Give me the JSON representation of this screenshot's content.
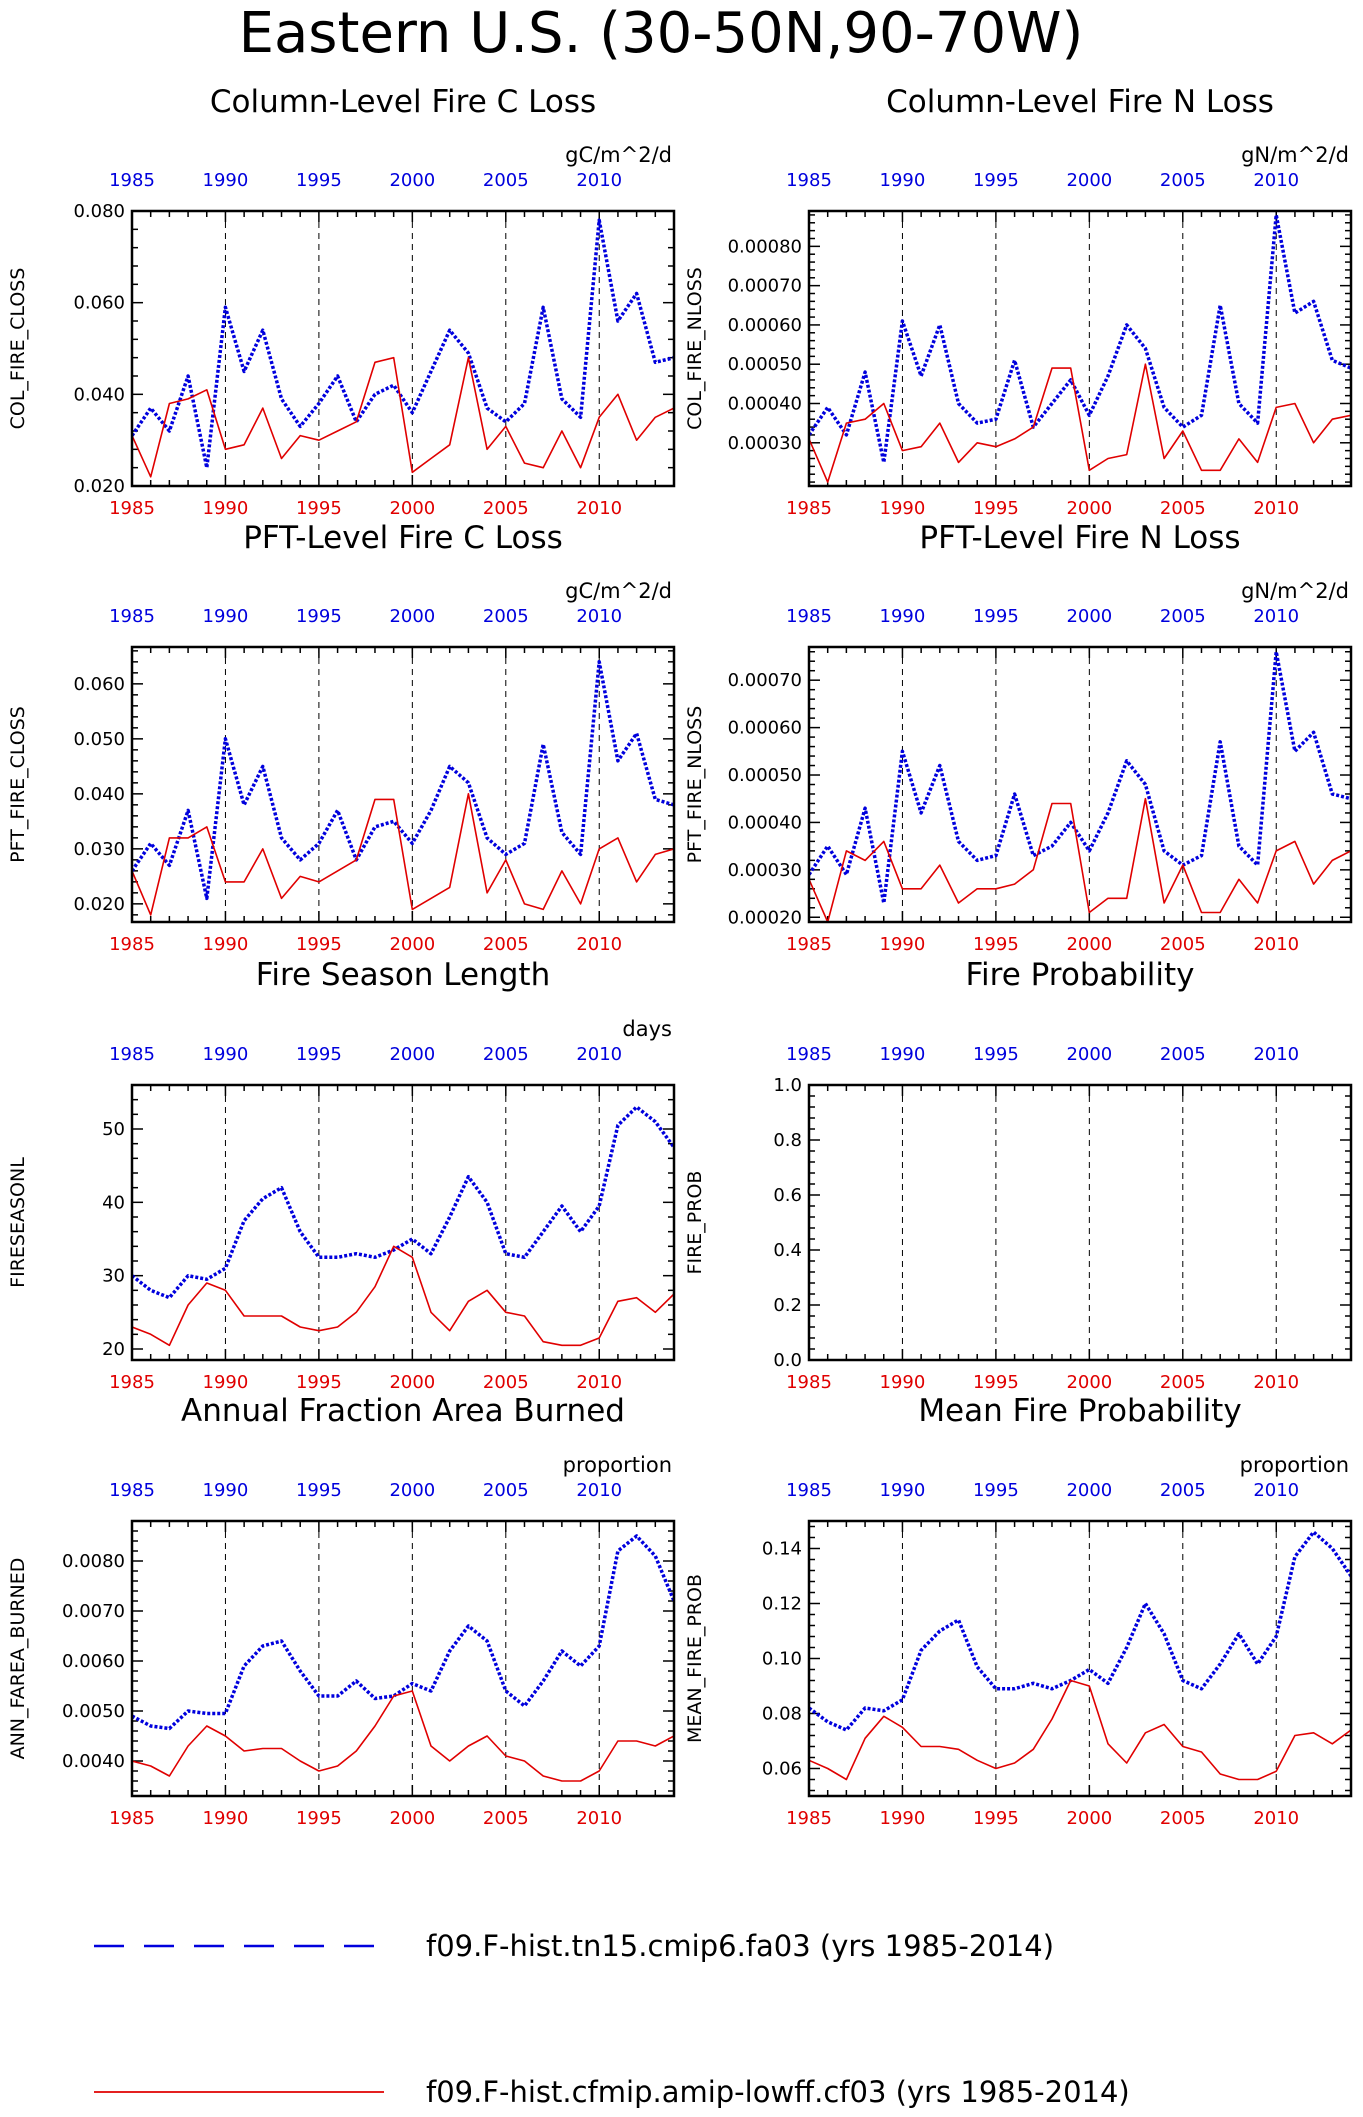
{
  "figure": {
    "title": "Eastern U.S. (30-50N,90-70W)"
  },
  "colors": {
    "series_1": "#0000dd",
    "series_2": "#e00000",
    "top_axis_labels": "#0000dd",
    "bottom_axis_labels": "#e00000"
  },
  "legend": {
    "items": [
      {
        "label": "f09.F-hist.tn15.cmip6.fa03 (yrs 1985-2014)",
        "color": "#0000dd",
        "style": "dashed"
      },
      {
        "label": "f09.F-hist.cfmip.amip-lowff.cf03 (yrs 1985-2014)",
        "color": "#e00000",
        "style": "solid"
      }
    ]
  },
  "chart_data": [
    {
      "type": "line",
      "title": "Column-Level Fire C Loss",
      "units": "gC/m^2/d",
      "ylabel": "COL_FIRE_CLOSS",
      "xlim": [
        1985,
        2014
      ],
      "ylim": [
        0.02,
        0.08
      ],
      "yticks": [
        "0.020",
        "0.040",
        "0.060",
        "0.080"
      ],
      "ytick_values": [
        0.02,
        0.04,
        0.06,
        0.08
      ],
      "xticks": [
        1985,
        1990,
        1995,
        2000,
        2005,
        2010
      ],
      "xtick_labels": [
        "1985",
        "1990",
        "1995",
        "2000",
        "2005",
        "2010"
      ],
      "grid": "dashed vertical lines at 1990, 1995, 2000, 2005, 2010",
      "x": [
        1985,
        1986,
        1987,
        1988,
        1989,
        1990,
        1991,
        1992,
        1993,
        1994,
        1995,
        1996,
        1997,
        1998,
        1999,
        2000,
        2001,
        2002,
        2003,
        2004,
        2005,
        2006,
        2007,
        2008,
        2009,
        2010,
        2011,
        2012,
        2013,
        2014
      ],
      "series": [
        {
          "values": [
            0.031,
            0.037,
            0.032,
            0.044,
            0.024,
            0.059,
            0.045,
            0.054,
            0.039,
            0.033,
            0.038,
            0.044,
            0.034,
            0.04,
            0.042,
            0.036,
            0.045,
            0.054,
            0.049,
            0.037,
            0.034,
            0.038,
            0.059,
            0.039,
            0.035,
            0.078,
            0.056,
            0.062,
            0.047,
            0.048
          ]
        },
        {
          "values": [
            0.031,
            0.022,
            0.038,
            0.039,
            0.041,
            0.028,
            0.029,
            0.037,
            0.026,
            0.031,
            0.03,
            0.032,
            0.034,
            0.047,
            0.048,
            0.023,
            0.026,
            0.029,
            0.048,
            0.028,
            0.033,
            0.025,
            0.024,
            0.032,
            0.024,
            0.035,
            0.04,
            0.03,
            0.035,
            0.037
          ]
        }
      ]
    },
    {
      "type": "line",
      "title": "Column-Level Fire N Loss",
      "units": "gN/m^2/d",
      "ylabel": "COL_FIRE_NLOSS",
      "xlim": [
        1985,
        2014
      ],
      "ylim": [
        0.00019,
        0.00089
      ],
      "yticks": [
        "0.00030",
        "0.00040",
        "0.00050",
        "0.00060",
        "0.00070",
        "0.00080"
      ],
      "ytick_values": [
        0.0003,
        0.0004,
        0.0005,
        0.0006,
        0.0007,
        0.0008
      ],
      "xticks": [
        1985,
        1990,
        1995,
        2000,
        2005,
        2010
      ],
      "xtick_labels": [
        "1985",
        "1990",
        "1995",
        "2000",
        "2005",
        "2010"
      ],
      "grid": "dashed vertical lines at 1990, 1995, 2000, 2005, 2010",
      "x": [
        1985,
        1986,
        1987,
        1988,
        1989,
        1990,
        1991,
        1992,
        1993,
        1994,
        1995,
        1996,
        1997,
        1998,
        1999,
        2000,
        2001,
        2002,
        2003,
        2004,
        2005,
        2006,
        2007,
        2008,
        2009,
        2010,
        2011,
        2012,
        2013,
        2014
      ],
      "series": [
        {
          "values": [
            0.00032,
            0.00039,
            0.00032,
            0.00048,
            0.00025,
            0.00061,
            0.00047,
            0.0006,
            0.0004,
            0.00035,
            0.00036,
            0.00051,
            0.00034,
            0.0004,
            0.00046,
            0.00037,
            0.00047,
            0.0006,
            0.00054,
            0.00039,
            0.00034,
            0.00037,
            0.00065,
            0.0004,
            0.00035,
            0.00088,
            0.00063,
            0.00066,
            0.00051,
            0.00049
          ]
        },
        {
          "values": [
            0.00031,
            0.0002,
            0.00035,
            0.00036,
            0.0004,
            0.00028,
            0.00029,
            0.00035,
            0.00025,
            0.0003,
            0.00029,
            0.00031,
            0.00034,
            0.00049,
            0.00049,
            0.00023,
            0.00026,
            0.00027,
            0.0005,
            0.00026,
            0.00033,
            0.00023,
            0.00023,
            0.00031,
            0.00025,
            0.00039,
            0.0004,
            0.0003,
            0.00036,
            0.00037
          ]
        }
      ]
    },
    {
      "type": "line",
      "title": "PFT-Level Fire C Loss",
      "units": "gC/m^2/d",
      "ylabel": "PFT_FIRE_CLOSS",
      "xlim": [
        1985,
        2014
      ],
      "ylim": [
        0.0167,
        0.0667
      ],
      "yticks": [
        "0.020",
        "0.030",
        "0.040",
        "0.050",
        "0.060"
      ],
      "ytick_values": [
        0.02,
        0.03,
        0.04,
        0.05,
        0.06
      ],
      "xticks": [
        1985,
        1990,
        1995,
        2000,
        2005,
        2010
      ],
      "xtick_labels": [
        "1985",
        "1990",
        "1995",
        "2000",
        "2005",
        "2010"
      ],
      "grid": "dashed vertical lines at 1990, 1995, 2000, 2005, 2010",
      "x": [
        1985,
        1986,
        1987,
        1988,
        1989,
        1990,
        1991,
        1992,
        1993,
        1994,
        1995,
        1996,
        1997,
        1998,
        1999,
        2000,
        2001,
        2002,
        2003,
        2004,
        2005,
        2006,
        2007,
        2008,
        2009,
        2010,
        2011,
        2012,
        2013,
        2014
      ],
      "series": [
        {
          "values": [
            0.026,
            0.031,
            0.027,
            0.037,
            0.021,
            0.05,
            0.038,
            0.045,
            0.032,
            0.028,
            0.031,
            0.037,
            0.028,
            0.034,
            0.035,
            0.031,
            0.037,
            0.045,
            0.042,
            0.032,
            0.029,
            0.031,
            0.049,
            0.033,
            0.029,
            0.064,
            0.046,
            0.051,
            0.039,
            0.038
          ]
        },
        {
          "values": [
            0.026,
            0.018,
            0.032,
            0.032,
            0.034,
            0.024,
            0.024,
            0.03,
            0.021,
            0.025,
            0.024,
            0.026,
            0.028,
            0.039,
            0.039,
            0.019,
            0.021,
            0.023,
            0.04,
            0.022,
            0.028,
            0.02,
            0.019,
            0.026,
            0.02,
            0.03,
            0.032,
            0.024,
            0.029,
            0.03
          ]
        }
      ]
    },
    {
      "type": "line",
      "title": "PFT-Level Fire N Loss",
      "units": "gN/m^2/d",
      "ylabel": "PFT_FIRE_NLOSS",
      "xlim": [
        1985,
        2014
      ],
      "ylim": [
        0.00019,
        0.00077
      ],
      "yticks": [
        "0.00020",
        "0.00030",
        "0.00040",
        "0.00050",
        "0.00060",
        "0.00070"
      ],
      "ytick_values": [
        0.0002,
        0.0003,
        0.0004,
        0.0005,
        0.0006,
        0.0007
      ],
      "xticks": [
        1985,
        1990,
        1995,
        2000,
        2005,
        2010
      ],
      "xtick_labels": [
        "1985",
        "1990",
        "1995",
        "2000",
        "2005",
        "2010"
      ],
      "grid": "dashed vertical lines at 1990, 1995, 2000, 2005, 2010",
      "x": [
        1985,
        1986,
        1987,
        1988,
        1989,
        1990,
        1991,
        1992,
        1993,
        1994,
        1995,
        1996,
        1997,
        1998,
        1999,
        2000,
        2001,
        2002,
        2003,
        2004,
        2005,
        2006,
        2007,
        2008,
        2009,
        2010,
        2011,
        2012,
        2013,
        2014
      ],
      "series": [
        {
          "values": [
            0.00029,
            0.00035,
            0.00029,
            0.00043,
            0.00023,
            0.00055,
            0.00042,
            0.00052,
            0.00036,
            0.00032,
            0.00033,
            0.00046,
            0.00033,
            0.00035,
            0.0004,
            0.00034,
            0.00042,
            0.00053,
            0.00048,
            0.00034,
            0.00031,
            0.00033,
            0.00057,
            0.00035,
            0.00031,
            0.00076,
            0.00055,
            0.00059,
            0.00046,
            0.00045
          ]
        },
        {
          "values": [
            0.00028,
            0.00019,
            0.00034,
            0.00032,
            0.00036,
            0.00026,
            0.00026,
            0.00031,
            0.00023,
            0.00026,
            0.00026,
            0.00027,
            0.0003,
            0.00044,
            0.00044,
            0.00021,
            0.00024,
            0.00024,
            0.00045,
            0.00023,
            0.00031,
            0.00021,
            0.00021,
            0.00028,
            0.00023,
            0.00034,
            0.00036,
            0.00027,
            0.00032,
            0.00034
          ]
        }
      ]
    },
    {
      "type": "line",
      "title": "Fire Season Length",
      "units": "days",
      "ylabel": "FIRESEASONL",
      "xlim": [
        1985,
        2014
      ],
      "ylim": [
        18.5,
        56
      ],
      "yticks": [
        "20",
        "30",
        "40",
        "50"
      ],
      "ytick_values": [
        20,
        30,
        40,
        50
      ],
      "xticks": [
        1985,
        1990,
        1995,
        2000,
        2005,
        2010
      ],
      "xtick_labels": [
        "1985",
        "1990",
        "1995",
        "2000",
        "2005",
        "2010"
      ],
      "grid": "dashed vertical lines at 1990, 1995, 2000, 2005, 2010",
      "x": [
        1985,
        1986,
        1987,
        1988,
        1989,
        1990,
        1991,
        1992,
        1993,
        1994,
        1995,
        1996,
        1997,
        1998,
        1999,
        2000,
        2001,
        2002,
        2003,
        2004,
        2005,
        2006,
        2007,
        2008,
        2009,
        2010,
        2011,
        2012,
        2013,
        2014
      ],
      "series": [
        {
          "values": [
            30,
            28,
            27,
            30,
            29.5,
            31,
            37.5,
            40.5,
            42,
            36,
            32.5,
            32.5,
            33,
            32.5,
            33.5,
            35,
            33,
            38,
            43.5,
            40,
            33,
            32.5,
            36,
            39.5,
            36,
            39.5,
            50.5,
            53,
            51,
            47.5
          ]
        },
        {
          "values": [
            23,
            22,
            20.5,
            26,
            29,
            28,
            24.5,
            24.5,
            24.5,
            23,
            22.5,
            23,
            25,
            28.5,
            34,
            32.5,
            25,
            22.5,
            26.5,
            28,
            25,
            24.5,
            21,
            20.5,
            20.5,
            21.5,
            26.5,
            27,
            25,
            27.5
          ]
        }
      ]
    },
    {
      "type": "line",
      "title": "Fire Probability",
      "units": "",
      "ylabel": "FIRE_PROB",
      "xlim": [
        1985,
        2014
      ],
      "ylim": [
        0,
        1
      ],
      "yticks": [
        "0.0",
        "0.2",
        "0.4",
        "0.6",
        "0.8",
        "1.0"
      ],
      "ytick_values": [
        0,
        0.2,
        0.4,
        0.6,
        0.8,
        1.0
      ],
      "xticks": [
        1985,
        1990,
        1995,
        2000,
        2005,
        2010
      ],
      "xtick_labels": [
        "1985",
        "1990",
        "1995",
        "2000",
        "2005",
        "2010"
      ],
      "grid": "dashed vertical lines at 1990, 1995, 2000, 2005, 2010",
      "x": [],
      "series": []
    },
    {
      "type": "line",
      "title": "Annual Fraction Area Burned",
      "units": "proportion",
      "ylabel": "ANN_FAREA_BURNED",
      "xlim": [
        1985,
        2014
      ],
      "ylim": [
        0.0033,
        0.0088
      ],
      "yticks": [
        "0.0040",
        "0.0050",
        "0.0060",
        "0.0070",
        "0.0080"
      ],
      "ytick_values": [
        0.004,
        0.005,
        0.006,
        0.007,
        0.008
      ],
      "xticks": [
        1985,
        1990,
        1995,
        2000,
        2005,
        2010
      ],
      "xtick_labels": [
        "1985",
        "1990",
        "1995",
        "2000",
        "2005",
        "2010"
      ],
      "grid": "dashed vertical lines at 1990, 1995, 2000, 2005, 2010",
      "x": [
        1985,
        1986,
        1987,
        1988,
        1989,
        1990,
        1991,
        1992,
        1993,
        1994,
        1995,
        1996,
        1997,
        1998,
        1999,
        2000,
        2001,
        2002,
        2003,
        2004,
        2005,
        2006,
        2007,
        2008,
        2009,
        2010,
        2011,
        2012,
        2013,
        2014
      ],
      "series": [
        {
          "values": [
            0.0049,
            0.0047,
            0.00465,
            0.005,
            0.00495,
            0.00495,
            0.0059,
            0.0063,
            0.0064,
            0.0058,
            0.0053,
            0.0053,
            0.0056,
            0.00525,
            0.0053,
            0.00555,
            0.0054,
            0.0062,
            0.0067,
            0.0064,
            0.0054,
            0.0051,
            0.0056,
            0.0062,
            0.0059,
            0.0063,
            0.0082,
            0.0085,
            0.0081,
            0.0072
          ]
        },
        {
          "values": [
            0.004,
            0.0039,
            0.0037,
            0.0043,
            0.0047,
            0.0045,
            0.0042,
            0.00425,
            0.00425,
            0.004,
            0.0038,
            0.0039,
            0.0042,
            0.0047,
            0.0053,
            0.0054,
            0.0043,
            0.004,
            0.0043,
            0.0045,
            0.0041,
            0.004,
            0.0037,
            0.0036,
            0.0036,
            0.0038,
            0.0044,
            0.0044,
            0.0043,
            0.0045
          ]
        }
      ]
    },
    {
      "type": "line",
      "title": "Mean Fire Probability",
      "units": "proportion",
      "ylabel": "MEAN_FIRE_PROB",
      "xlim": [
        1985,
        2014
      ],
      "ylim": [
        0.05,
        0.15
      ],
      "yticks": [
        "0.06",
        "0.08",
        "0.10",
        "0.12",
        "0.14"
      ],
      "ytick_values": [
        0.06,
        0.08,
        0.1,
        0.12,
        0.14
      ],
      "xticks": [
        1985,
        1990,
        1995,
        2000,
        2005,
        2010
      ],
      "xtick_labels": [
        "1985",
        "1990",
        "1995",
        "2000",
        "2005",
        "2010"
      ],
      "grid": "dashed vertical lines at 1990, 1995, 2000, 2005, 2010",
      "x": [
        1985,
        1986,
        1987,
        1988,
        1989,
        1990,
        1991,
        1992,
        1993,
        1994,
        1995,
        1996,
        1997,
        1998,
        1999,
        2000,
        2001,
        2002,
        2003,
        2004,
        2005,
        2006,
        2007,
        2008,
        2009,
        2010,
        2011,
        2012,
        2013,
        2014
      ],
      "series": [
        {
          "values": [
            0.082,
            0.077,
            0.074,
            0.082,
            0.081,
            0.085,
            0.103,
            0.11,
            0.114,
            0.097,
            0.089,
            0.089,
            0.091,
            0.089,
            0.092,
            0.096,
            0.091,
            0.104,
            0.12,
            0.109,
            0.092,
            0.089,
            0.098,
            0.109,
            0.098,
            0.108,
            0.137,
            0.146,
            0.14,
            0.13
          ]
        },
        {
          "values": [
            0.063,
            0.06,
            0.056,
            0.071,
            0.079,
            0.075,
            0.068,
            0.068,
            0.067,
            0.063,
            0.06,
            0.062,
            0.067,
            0.078,
            0.092,
            0.09,
            0.069,
            0.062,
            0.073,
            0.076,
            0.068,
            0.066,
            0.058,
            0.056,
            0.056,
            0.059,
            0.072,
            0.073,
            0.069,
            0.074
          ]
        }
      ]
    }
  ]
}
